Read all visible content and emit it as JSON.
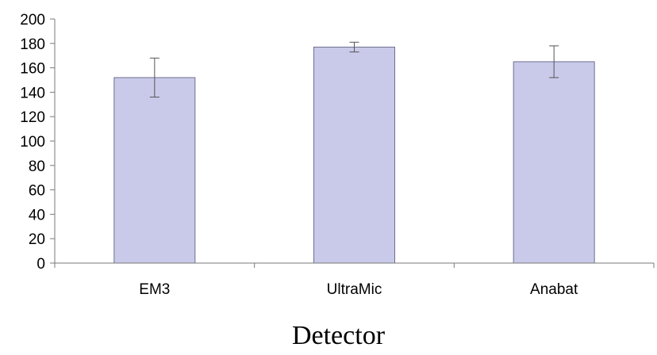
{
  "chart_data": {
    "type": "bar",
    "categories": [
      "EM3",
      "UltraMic",
      "Anabat"
    ],
    "values": [
      152,
      177,
      165
    ],
    "error_low": [
      136,
      173,
      152
    ],
    "error_high": [
      168,
      181,
      178
    ],
    "xlabel": "Detector",
    "ylabel": "",
    "ylim": [
      0,
      200
    ],
    "yticks": [
      0,
      20,
      40,
      60,
      80,
      100,
      120,
      140,
      160,
      180,
      200
    ],
    "grid": false,
    "legend": "none",
    "bar_color": "#c9c9ea",
    "bar_edge_color": "#6f6f8f"
  }
}
